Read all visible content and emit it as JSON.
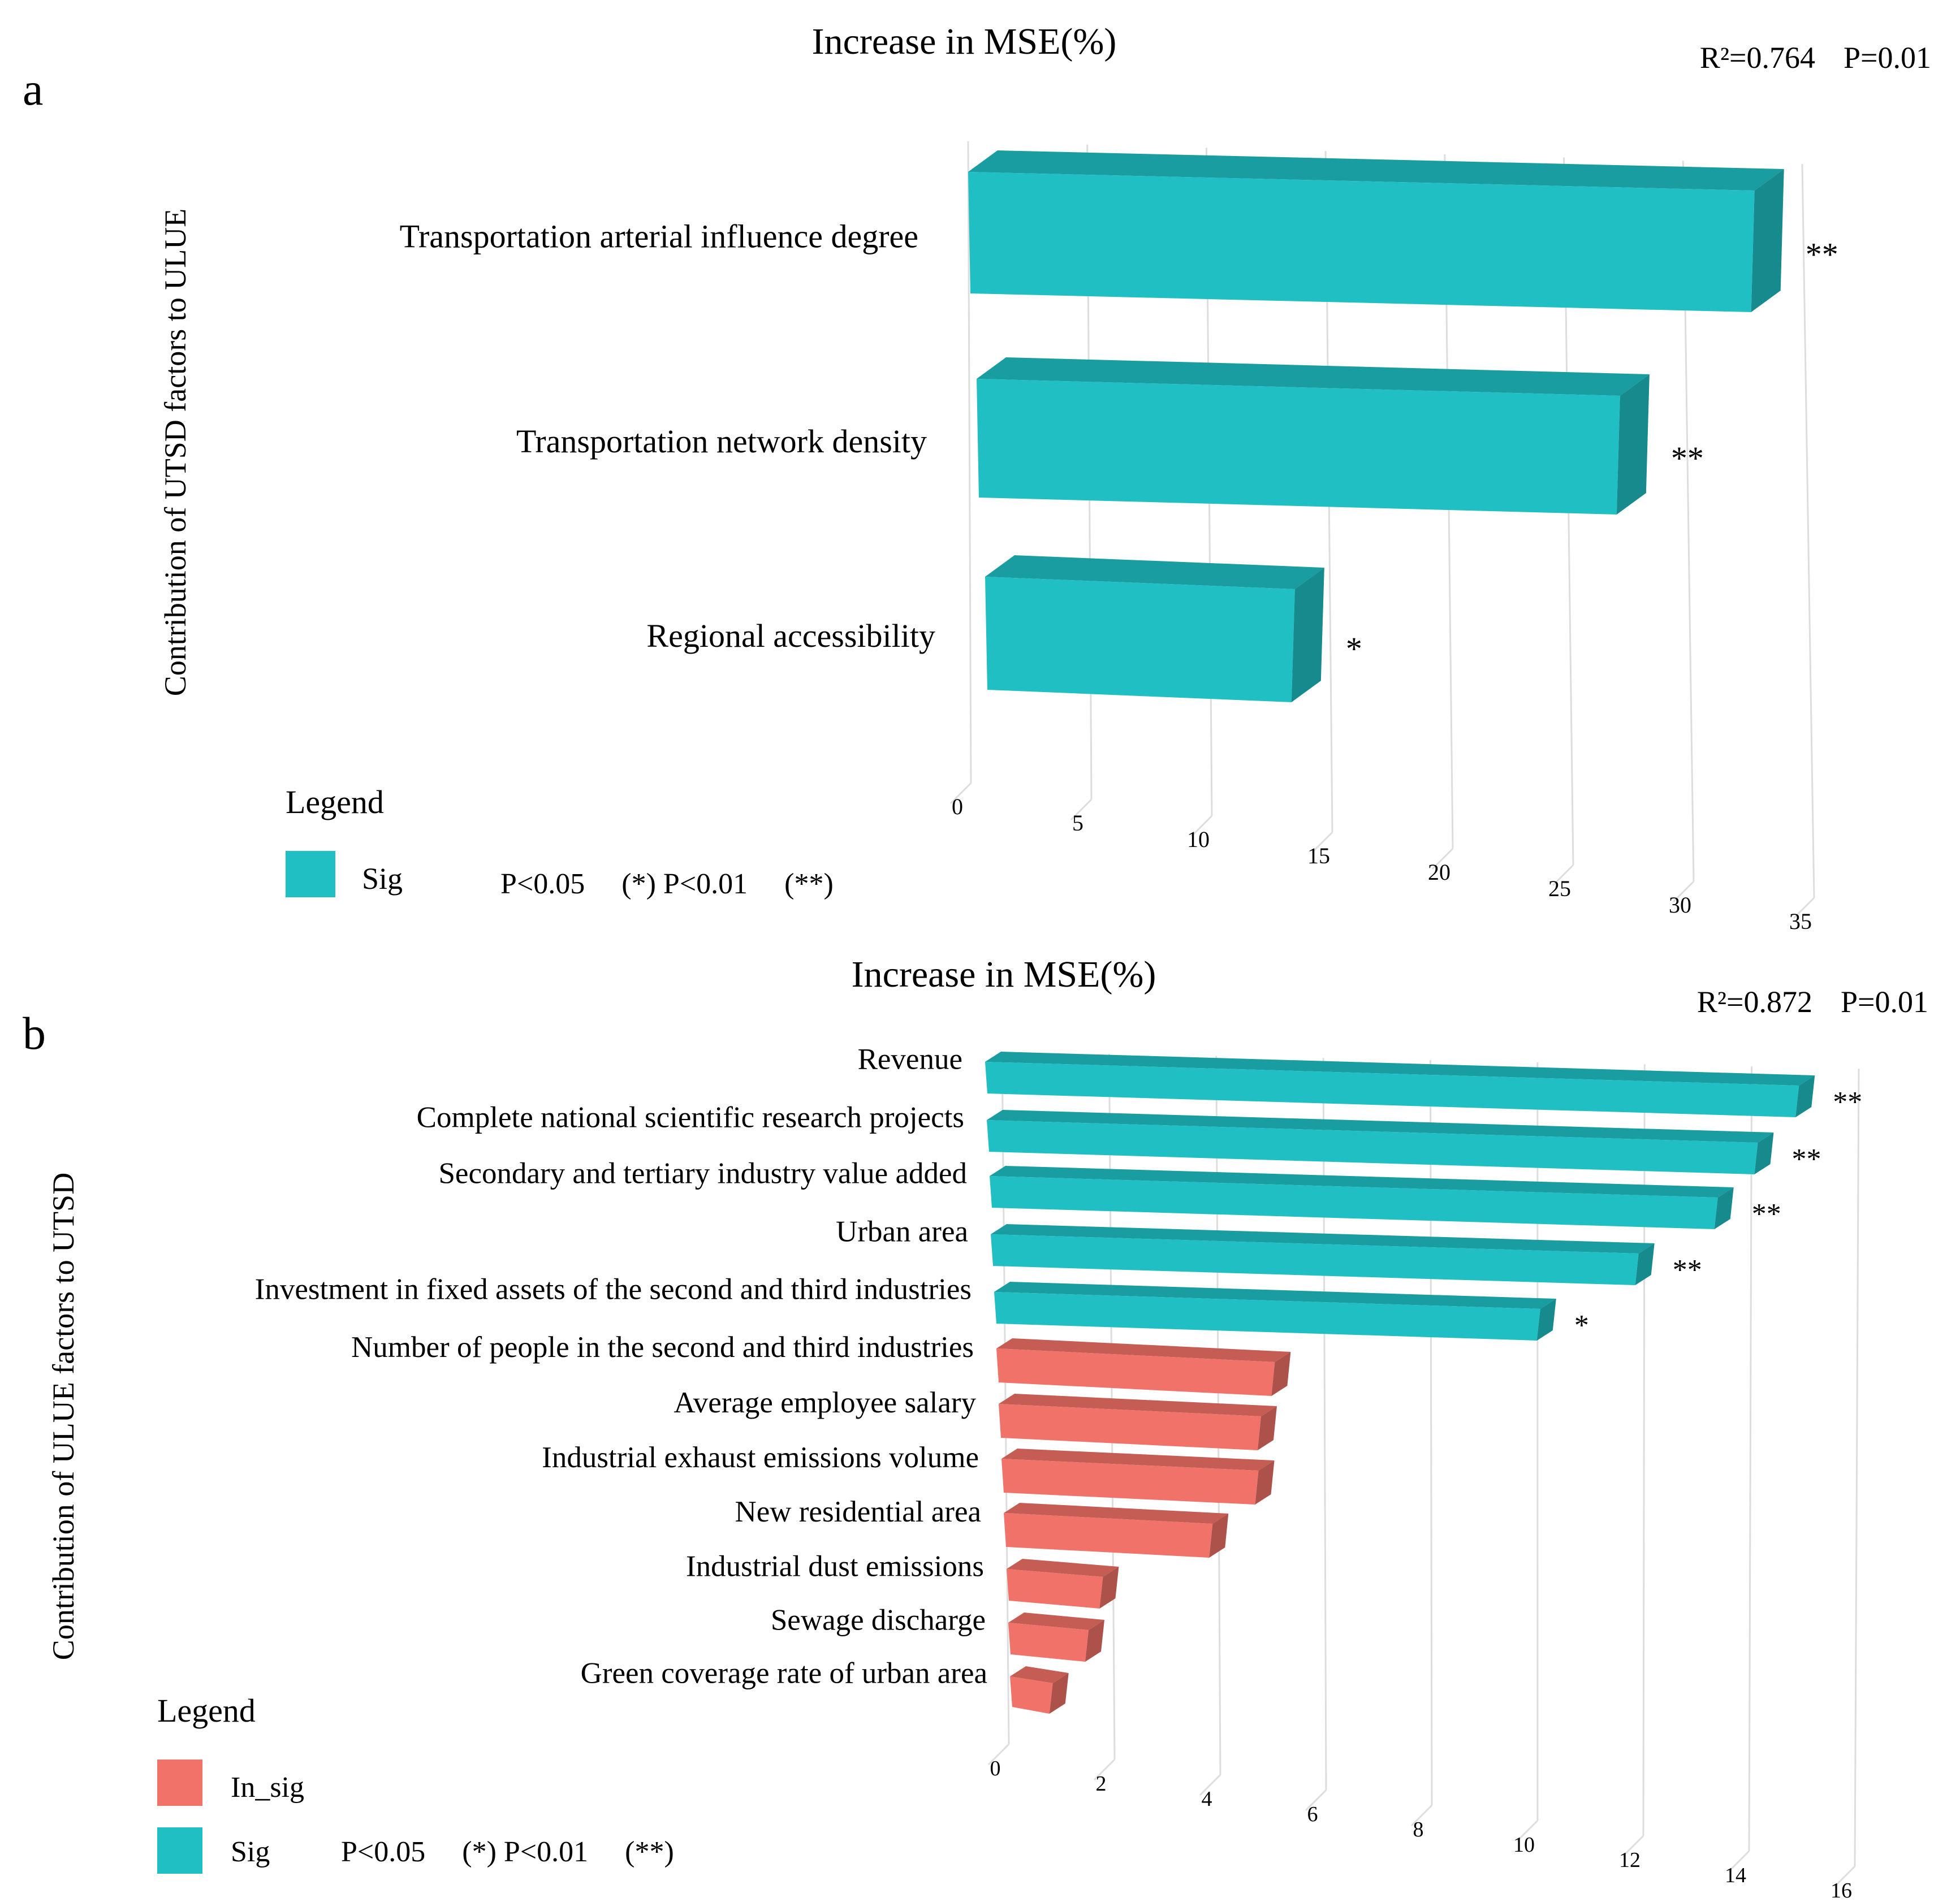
{
  "colors": {
    "sig": "#1fbfc3",
    "in_sig": "#f07268",
    "grid": "#dddddd",
    "text": "#222222"
  },
  "chart_data": [
    {
      "panel": "a",
      "type": "bar",
      "orientation": "horizontal",
      "title": "Increase in MSE(%)",
      "stats": {
        "r2": "R²=0.764",
        "p": "P=0.01"
      },
      "ylabel": "Contribution of UTSD factors to ULUE",
      "xlim": [
        0,
        35
      ],
      "ticks": [
        "0",
        "5",
        "10",
        "15",
        "20",
        "25",
        "30",
        "35"
      ],
      "categories": [
        "Transportation arterial influence degree",
        "Transportation network density",
        "Regional accessibility"
      ],
      "values": [
        33,
        27,
        13
      ],
      "significance": [
        "**",
        "**",
        "*"
      ],
      "groups": [
        "sig",
        "sig",
        "sig"
      ],
      "legend": {
        "title": "Legend",
        "items": [
          {
            "key": "sig",
            "label": "Sig"
          }
        ],
        "note": "P<0.05     (*) P<0.01     (**)"
      }
    },
    {
      "panel": "b",
      "type": "bar",
      "orientation": "horizontal",
      "title": "Increase in MSE(%)",
      "stats": {
        "r2": "R²=0.872",
        "p": "P=0.01"
      },
      "ylabel": "Contribution of ULUE factors to UTSD",
      "xlim": [
        0,
        16
      ],
      "ticks": [
        "0",
        "2",
        "4",
        "6",
        "8",
        "10",
        "12",
        "14",
        "16"
      ],
      "categories": [
        "Revenue",
        "Complete national scientific research projects",
        "Secondary and tertiary industry value added",
        "Urban area",
        "Investment in fixed assets of the second and third industries",
        "Number of people in the second and third industries",
        "Average employee salary",
        "Industrial exhaust emissions volume",
        "New residential area",
        "Industrial dust emissions",
        "Sewage discharge",
        "Green coverage rate of urban area"
      ],
      "values": [
        15.2,
        14.4,
        13.6,
        12.1,
        10.2,
        5.2,
        4.9,
        4.8,
        3.9,
        1.8,
        1.5,
        0.8
      ],
      "significance": [
        "**",
        "**",
        "**",
        "**",
        "*",
        "",
        "",
        "",
        "",
        "",
        "",
        ""
      ],
      "groups": [
        "sig",
        "sig",
        "sig",
        "sig",
        "sig",
        "in_sig",
        "in_sig",
        "in_sig",
        "in_sig",
        "in_sig",
        "in_sig",
        "in_sig"
      ],
      "legend": {
        "title": "Legend",
        "items": [
          {
            "key": "in_sig",
            "label": "In_sig"
          },
          {
            "key": "sig",
            "label": "Sig"
          }
        ],
        "note": "P<0.05     (*) P<0.01     (**)"
      }
    }
  ]
}
